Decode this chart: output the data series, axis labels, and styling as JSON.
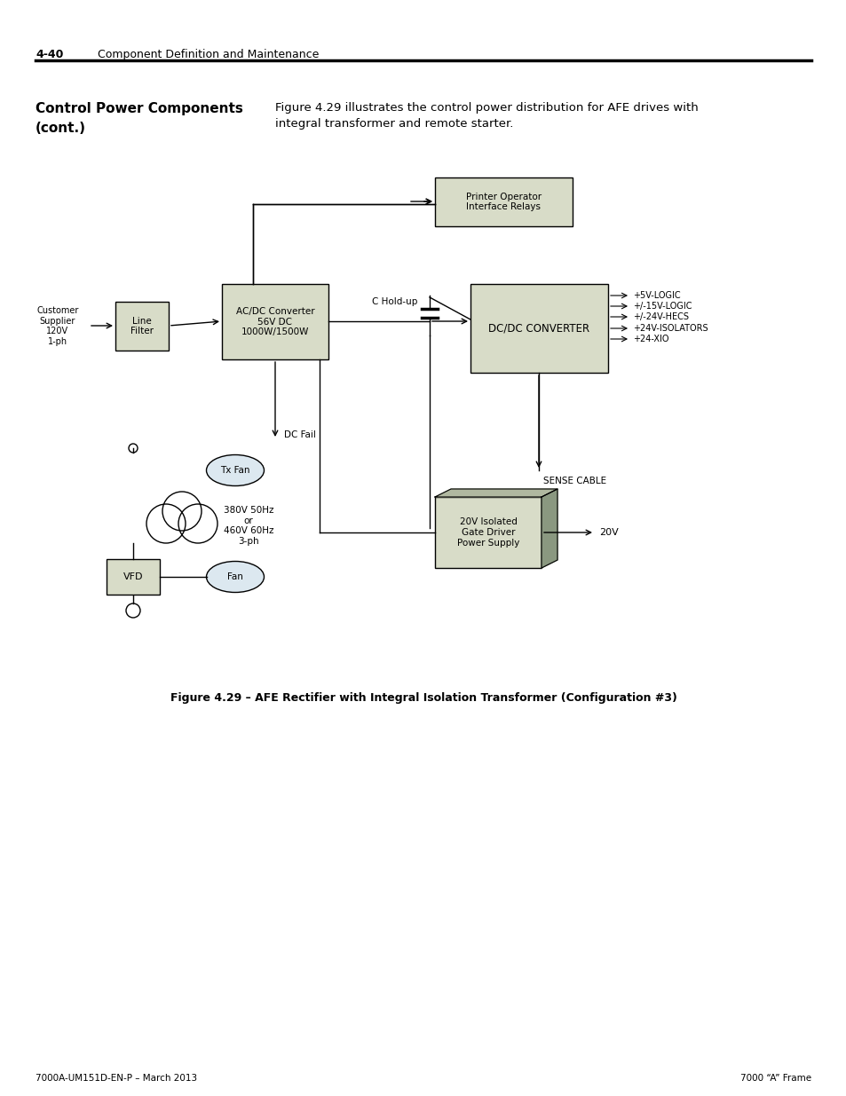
{
  "page_number": "4-40",
  "page_header": "Component Definition and Maintenance",
  "section_title": "Control Power Components\n(cont.)",
  "section_text": "Figure 4.29 illustrates the control power distribution for AFE drives with\nintegral transformer and remote starter.",
  "figure_caption": "Figure 4.29 – AFE Rectifier with Integral Isolation Transformer (Configuration #3)",
  "footer_left": "7000A-UM151D-EN-P – March 2013",
  "footer_right": "7000 “A” Frame",
  "bg_color": "#ffffff",
  "box_fill_light": "#d8dcc8",
  "box_fill_darker": "#b0b8a0",
  "box_stroke": "#000000",
  "box_3d_fill": "#8a9880"
}
